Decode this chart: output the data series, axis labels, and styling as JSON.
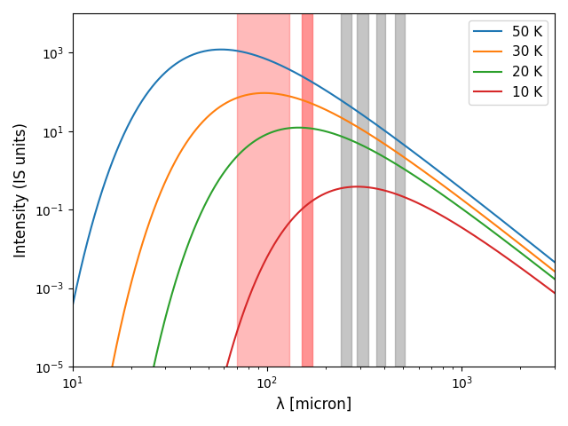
{
  "temperatures": [
    50,
    30,
    20,
    10
  ],
  "colors": [
    "#1f77b4",
    "#ff7f0e",
    "#2ca02c",
    "#d62728"
  ],
  "labels": [
    "50 K",
    "30 K",
    "20 K",
    "10 K"
  ],
  "xlim": [
    10,
    3000
  ],
  "ylim": [
    1e-05,
    10000.0
  ],
  "xlabel": "λ [micron]",
  "ylabel": "Intensity (IS units)",
  "pacs_wide": [
    70,
    130
  ],
  "pacs_narrow": [
    150,
    170
  ],
  "pacs_color": "#ff6666",
  "pacs_wide_alpha": 0.45,
  "pacs_narrow_alpha": 0.7,
  "spire_bands": [
    [
      240,
      270
    ],
    [
      290,
      330
    ],
    [
      365,
      405
    ],
    [
      455,
      510
    ]
  ],
  "spire_color": "gray",
  "spire_alpha": 0.45,
  "legend_loc": "upper right",
  "legend_fontsize": 11,
  "xlabel_fontsize": 12,
  "ylabel_fontsize": 12
}
